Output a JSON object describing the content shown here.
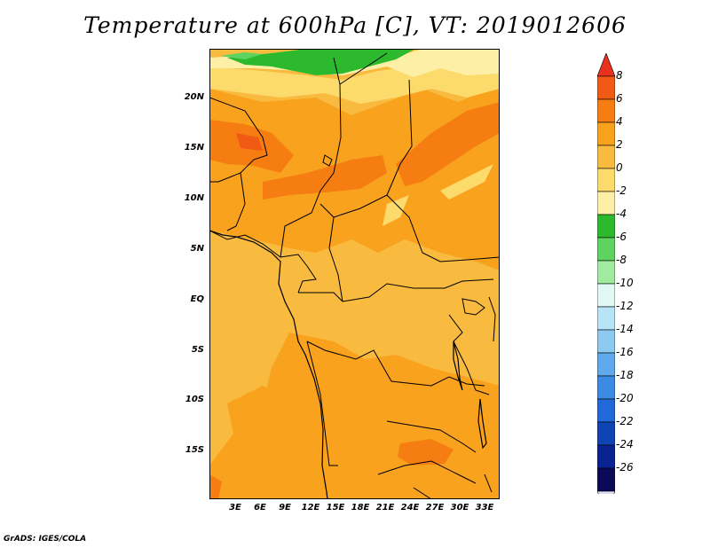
{
  "title": "Temperature at 600hPa [C], VT: 2019012606",
  "credit": "GrADS: IGES/COLA",
  "lat_labels": [
    "20N",
    "15N",
    "10N",
    "5N",
    "EQ",
    "5S",
    "10S",
    "15S"
  ],
  "lon_labels": [
    "3E",
    "6E",
    "9E",
    "12E",
    "15E",
    "18E",
    "21E",
    "24E",
    "27E",
    "30E",
    "33E"
  ],
  "colorbar": {
    "labels": [
      "8",
      "6",
      "4",
      "2",
      "0",
      "-2",
      "-4",
      "-6",
      "-8",
      "-10",
      "-12",
      "-14",
      "-16",
      "-18",
      "-20",
      "-22",
      "-24",
      "-26"
    ],
    "colors": [
      "#e8321f",
      "#f05a14",
      "#f57d12",
      "#f8a21e",
      "#f9bb3f",
      "#fcda6c",
      "#fdf0a6",
      "#2db92d",
      "#5fd35f",
      "#a0eba0",
      "#e2f8f2",
      "#b7e4f7",
      "#8dcaf2",
      "#5fa9ec",
      "#3c8ae4",
      "#2169d8",
      "#0f44b5",
      "#0a2393",
      "#0a0a58",
      "#dcdcf6"
    ]
  }
}
